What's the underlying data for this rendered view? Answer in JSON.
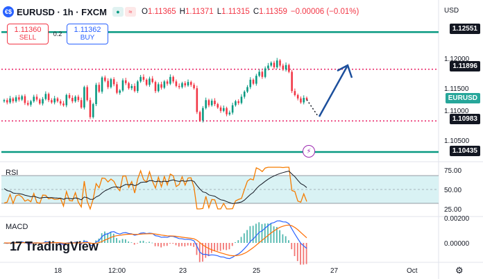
{
  "header": {
    "symbol": "EURUSD · 1h · FXCM",
    "symbol_icon": "€$",
    "toggle_icons": [
      "eye-icon",
      "wave-icon"
    ],
    "ohlc": [
      {
        "key": "O",
        "value": "1.11365"
      },
      {
        "key": "H",
        "value": "1.11371"
      },
      {
        "key": "L",
        "value": "1.11315"
      },
      {
        "key": "C",
        "value": "1.11359"
      },
      {
        "key": "",
        "value": "−0.00006 (−0.01%)"
      }
    ]
  },
  "trade": {
    "sell_price": "1.11360",
    "sell_label": "SELL",
    "spread": "0.2",
    "buy_price": "1.11362",
    "buy_label": "BUY"
  },
  "currency": "USD",
  "price_axis": {
    "ticks": [
      "1.12000",
      "1.11500",
      "1.11000",
      "1.10500"
    ],
    "badges": [
      {
        "text": "1.12551",
        "color": "#131722"
      },
      {
        "text": "1.11896",
        "color": "#131722"
      },
      {
        "text": "EURUSD",
        "color": "#26a69a"
      },
      {
        "text": "1.10983",
        "color": "#131722"
      },
      {
        "text": "1.10435",
        "color": "#131722"
      }
    ]
  },
  "rsi": {
    "label": "RSI",
    "ticks": [
      "75.00",
      "50.00",
      "25.00"
    ]
  },
  "macd": {
    "label": "MACD",
    "ticks": [
      "0.00200",
      "0.00000"
    ]
  },
  "time_axis": [
    "18",
    "12:00",
    "23",
    "25",
    "27",
    "Oct"
  ],
  "logo": {
    "mark": "17",
    "text": "TradingView"
  },
  "colors": {
    "up": "#089981",
    "down": "#f23645",
    "support": "#089981",
    "dotted": "#e91e63",
    "arrow": "#1c4f9c"
  },
  "chart_data": {
    "type": "candlestick",
    "levels": [
      1.12551,
      1.11896,
      1.10983,
      1.10435
    ],
    "ylim": [
      1.103,
      1.1275
    ],
    "close": [
      1.1135,
      1.1131,
      1.1138,
      1.1133,
      1.114,
      1.1136,
      1.1142,
      1.113,
      1.1127,
      1.1133,
      1.1141,
      1.1136,
      1.1129,
      1.1137,
      1.1146,
      1.1135,
      1.1131,
      1.1138,
      1.1133,
      1.1129,
      1.1126,
      1.1144,
      1.1139,
      1.1133,
      1.1141,
      1.1135,
      1.1122,
      1.1158,
      1.1135,
      1.1105,
      1.1128,
      1.1162,
      1.115,
      1.1175,
      1.1169,
      1.1158,
      1.1172,
      1.1163,
      1.1148,
      1.1152,
      1.117,
      1.1165,
      1.1156,
      1.116,
      1.1151,
      1.1168,
      1.1176,
      1.1171,
      1.1162,
      1.1173,
      1.1167,
      1.1151,
      1.1163,
      1.1157,
      1.1168,
      1.1164,
      1.1176,
      1.1168,
      1.116,
      1.1158,
      1.1165,
      1.1161,
      1.1167,
      1.1162,
      1.1156,
      1.1114,
      1.1099,
      1.1121,
      1.1135,
      1.1126,
      1.1134,
      1.1128,
      1.1122,
      1.1116,
      1.1121,
      1.111,
      1.1113,
      1.1126,
      1.1133,
      1.113,
      1.1141,
      1.115,
      1.1158,
      1.1171,
      1.1164,
      1.1178,
      1.1185,
      1.1176,
      1.1191,
      1.1196,
      1.1201,
      1.1193,
      1.1205,
      1.1196,
      1.1189,
      1.1197,
      1.1185,
      1.1151,
      1.1144,
      1.1138,
      1.1131,
      1.1139,
      1.1136
    ]
  }
}
